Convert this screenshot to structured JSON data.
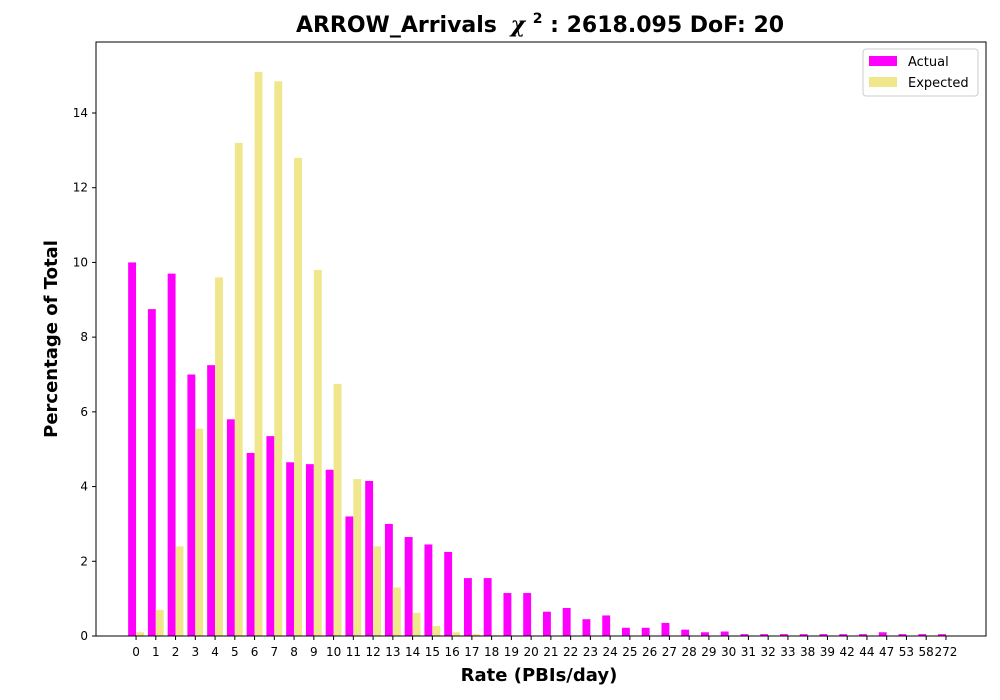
{
  "chart_data": {
    "type": "bar",
    "title": "ARROW_Arrivals",
    "title_chi_symbol": "χ",
    "title_chi_exponent": "2",
    "title_stats": ": 2618.095 DoF: 20",
    "xlabel": "Rate (PBIs/day)",
    "ylabel": "Percentage of Total",
    "ylim": [
      0,
      15.9
    ],
    "yticks": [
      0,
      2,
      4,
      6,
      8,
      10,
      12,
      14
    ],
    "legend_position": "top-right",
    "grid": false,
    "categories": [
      "0",
      "1",
      "2",
      "3",
      "4",
      "5",
      "6",
      "7",
      "8",
      "9",
      "10",
      "11",
      "12",
      "13",
      "14",
      "15",
      "16",
      "17",
      "18",
      "19",
      "20",
      "21",
      "22",
      "23",
      "24",
      "25",
      "26",
      "27",
      "28",
      "29",
      "30",
      "31",
      "32",
      "33",
      "38",
      "39",
      "42",
      "44",
      "47",
      "53",
      "58",
      "272"
    ],
    "series": [
      {
        "name": "Actual",
        "color": "#ff00ff",
        "values": [
          10.0,
          8.75,
          9.7,
          7.0,
          7.25,
          5.8,
          4.9,
          5.35,
          4.65,
          4.6,
          4.45,
          3.2,
          4.15,
          3.0,
          2.65,
          2.45,
          2.25,
          1.55,
          1.55,
          1.15,
          1.15,
          0.65,
          0.75,
          0.45,
          0.55,
          0.22,
          0.22,
          0.35,
          0.17,
          0.1,
          0.12,
          0.05,
          0.05,
          0.05,
          0.05,
          0.05,
          0.05,
          0.05,
          0.1,
          0.05,
          0.05,
          0.05
        ]
      },
      {
        "name": "Expected",
        "color": "#f0e68c",
        "values": [
          0.1,
          0.7,
          2.4,
          5.55,
          9.6,
          13.2,
          15.1,
          14.85,
          12.8,
          9.8,
          6.75,
          4.2,
          2.4,
          1.3,
          0.62,
          0.27,
          0.1,
          0.05,
          0.02,
          0.0,
          0.0,
          0.0,
          0.0,
          0.0,
          0.0,
          0.0,
          0.0,
          0.0,
          0.0,
          0.0,
          0.0,
          0.0,
          0.0,
          0.0,
          0.0,
          0.0,
          0.0,
          0.0,
          0.0,
          0.0,
          0.0,
          0.0
        ]
      }
    ]
  }
}
